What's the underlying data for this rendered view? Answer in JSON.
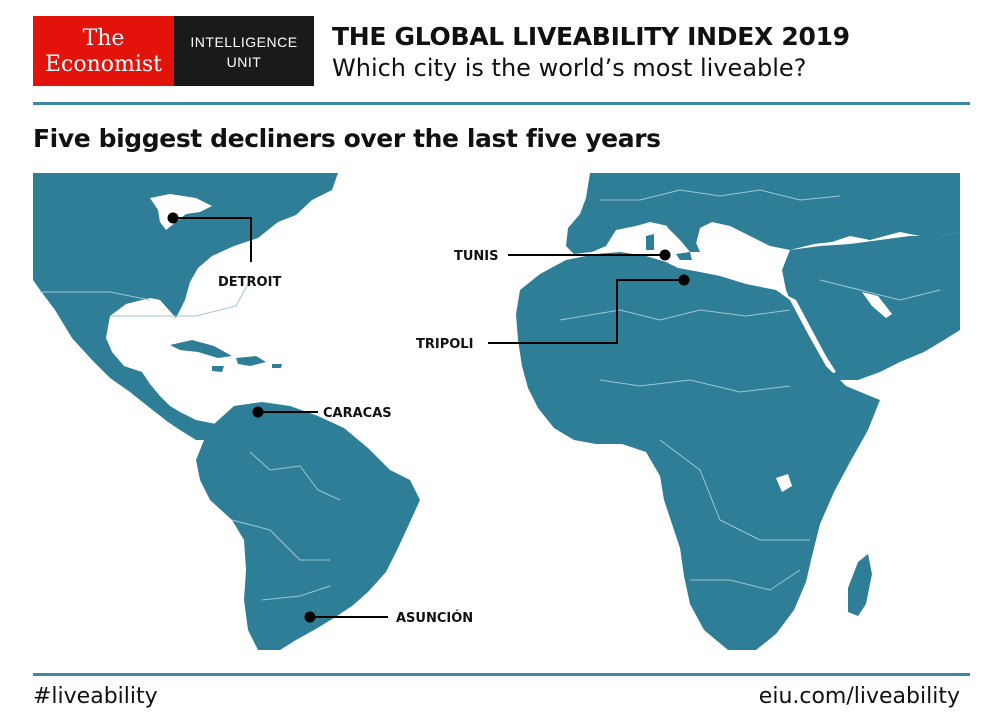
{
  "header": {
    "logo_economist_line1": "The",
    "logo_economist_line2": "Economist",
    "logo_unit_line1": "INTELLIGENCE",
    "logo_unit_line2": "UNIT",
    "title": "THE GLOBAL LIVEABILITY INDEX 2019",
    "subtitle": "Which city is the world’s most liveable?"
  },
  "map": {
    "heading": "Five biggest decliners over the last five years",
    "land_color": "#2f7e98",
    "border_color": "#9cc6d4",
    "cities": [
      {
        "name": "DETROIT"
      },
      {
        "name": "TUNIS"
      },
      {
        "name": "TRIPOLI"
      },
      {
        "name": "CARACAS"
      },
      {
        "name": "ASUNCIÓN"
      }
    ]
  },
  "footer": {
    "hashtag": "#liveability",
    "url": "eiu.com/liveability"
  },
  "colors": {
    "rule": "#3c87a1",
    "economist_red": "#e3120b",
    "unit_black": "#1a1a1a"
  }
}
